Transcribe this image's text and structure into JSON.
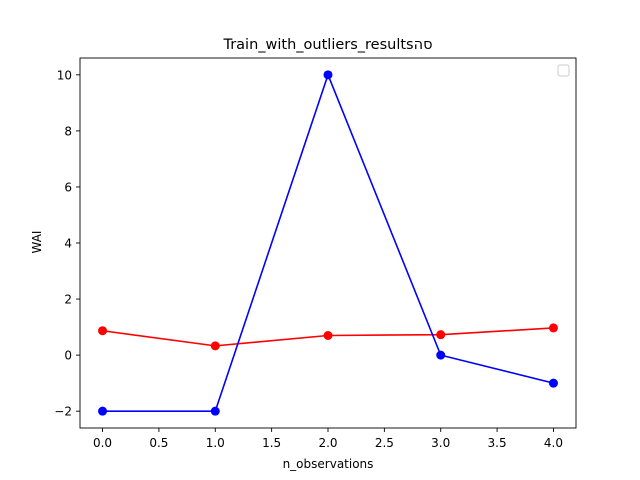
{
  "chart_data": {
    "type": "line",
    "title": "Train_with_outliers_resultsסה",
    "xlabel": "n_observations",
    "ylabel": "WAI",
    "xlim": [
      -0.2,
      4.2
    ],
    "ylim": [
      -2.6,
      10.6
    ],
    "xticks": [
      0.0,
      0.5,
      1.0,
      1.5,
      2.0,
      2.5,
      3.0,
      3.5,
      4.0
    ],
    "xtick_labels": [
      "0.0",
      "0.5",
      "1.0",
      "1.5",
      "2.0",
      "2.5",
      "3.0",
      "3.5",
      "4.0"
    ],
    "yticks": [
      -2,
      0,
      2,
      4,
      6,
      8,
      10
    ],
    "ytick_labels": [
      "−2",
      "0",
      "2",
      "4",
      "6",
      "8",
      "10"
    ],
    "grid": false,
    "legend": {
      "placement": "top-right",
      "entries": []
    },
    "x": [
      0,
      1,
      2,
      3,
      4
    ],
    "series": [
      {
        "color": "#ff0000",
        "marker": "circle",
        "values": [
          0.87,
          0.33,
          0.7,
          0.73,
          0.97
        ]
      },
      {
        "color": "#0000ff",
        "marker": "circle",
        "values": [
          -2,
          -2,
          10,
          0,
          -1
        ]
      }
    ]
  }
}
